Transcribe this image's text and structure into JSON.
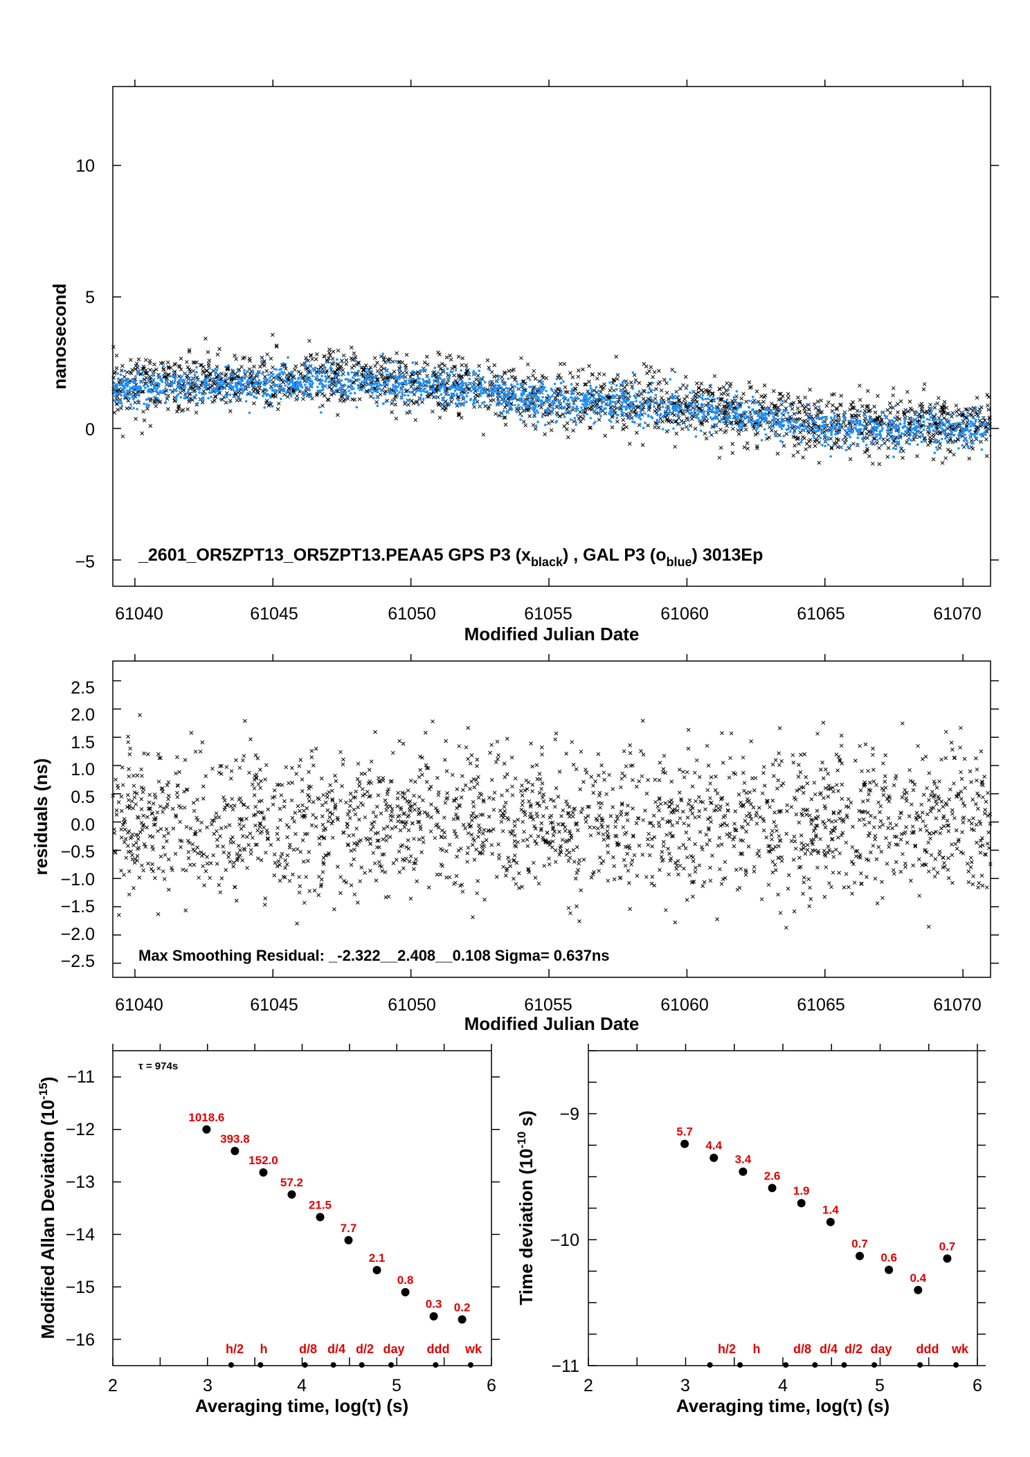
{
  "colors": {
    "gps": "#000000",
    "gal": "#1e90ff",
    "labels": "#e00000"
  },
  "top": {
    "ylabel": "nanosecond",
    "xlabel": "Modified Julian Date",
    "annotation_prefix": "_2601_OR5ZPT13_OR5ZPT13.PEAA5    GPS P3 (x",
    "annotation_sub1": "black",
    "annotation_mid": ") ,  GAL P3 (o",
    "annotation_sub2": "blue",
    "annotation_suffix": ")  3013Ep",
    "yticks": [
      "10",
      "5",
      "0",
      "−5"
    ],
    "xticks": [
      "61040",
      "61045",
      "61050",
      "61055",
      "61060",
      "61065",
      "61070"
    ]
  },
  "middle": {
    "ylabel": "residuals (ns)",
    "xlabel": "Modified Julian Date",
    "annotation": "Max Smoothing Residual: _-2.322__2.408__0.108  Sigma= 0.637ns",
    "yticks": [
      "2.5",
      "2.0",
      "1.5",
      "1.0",
      "0.5",
      "0.0",
      "−0.5",
      "−1.0",
      "−1.5",
      "−2.0",
      "−2.5"
    ],
    "xticks": [
      "61040",
      "61045",
      "61050",
      "61055",
      "61060",
      "61065",
      "61070"
    ]
  },
  "bottom_left": {
    "ylabel_main": "Modified Allan Deviation (10",
    "ylabel_sup": "-15",
    "ylabel_end": ")",
    "xlabel": "Averaging time, log(τ) (s)",
    "tau_note": "τ = 974s",
    "yticks": [
      "−11",
      "−12",
      "−13",
      "−14",
      "−15",
      "−16"
    ],
    "xticks": [
      "2",
      "3",
      "4",
      "5",
      "6"
    ],
    "markers": [
      "h/2",
      "h",
      "d/8",
      "d/4",
      "d/2",
      "day",
      "ddd",
      "wk"
    ]
  },
  "bottom_right": {
    "ylabel_main": "Time deviation (10",
    "ylabel_sup": "-10",
    "ylabel_end": " s)",
    "xlabel": "Averaging time, log(τ) (s)",
    "yticks": [
      "−9",
      "−10",
      "−11"
    ],
    "xticks": [
      "2",
      "3",
      "4",
      "5",
      "6"
    ],
    "markers": [
      "h/2",
      "h",
      "d/8",
      "d/4",
      "d/2",
      "day",
      "ddd",
      "wk"
    ]
  },
  "chart_data": [
    {
      "type": "scatter",
      "panel": "top",
      "xlabel": "Modified Julian Date",
      "ylabel": "nanosecond",
      "xlim": [
        61039.2,
        61071
      ],
      "ylim": [
        -6,
        13
      ],
      "series": [
        {
          "name": "GPS P3 (x black)",
          "marker": "x",
          "trend": [
            [
              61039.2,
              1.6
            ],
            [
              61047,
              1.9
            ],
            [
              61052,
              1.5
            ],
            [
              61055,
              1.1
            ],
            [
              61060,
              0.9
            ],
            [
              61065,
              0.1
            ],
            [
              61071,
              0.1
            ]
          ],
          "spread": 0.55
        },
        {
          "name": "GAL P3 (o blue)",
          "marker": "o",
          "trend": [
            [
              61039.2,
              1.5
            ],
            [
              61047,
              1.8
            ],
            [
              61052,
              1.5
            ],
            [
              61055,
              1.0
            ],
            [
              61060,
              0.8
            ],
            [
              61065,
              0.0
            ],
            [
              61071,
              0.0
            ]
          ],
          "spread": 0.35
        }
      ]
    },
    {
      "type": "scatter",
      "panel": "middle",
      "xlabel": "Modified Julian Date",
      "ylabel": "residuals (ns)",
      "xlim": [
        61039.2,
        61071
      ],
      "ylim": [
        -2.75,
        2.85
      ],
      "series": [
        {
          "name": "residuals",
          "marker": "x",
          "mean": 0.0,
          "sigma": 0.637,
          "min": -2.322,
          "max": 2.408
        }
      ]
    },
    {
      "type": "scatter",
      "panel": "bottom_left",
      "xlabel": "Averaging time, log(τ) (s)",
      "ylabel": "Modified Allan Deviation (10^-15)",
      "xlim": [
        2,
        6
      ],
      "ylim": [
        -16.5,
        -10.5
      ],
      "x": [
        2.99,
        3.29,
        3.59,
        3.89,
        4.19,
        4.49,
        4.79,
        5.09,
        5.39,
        5.69
      ],
      "y": [
        -12.0,
        -12.41,
        -12.82,
        -13.24,
        -13.67,
        -14.11,
        -14.68,
        -15.1,
        -15.56,
        -15.62
      ],
      "labels": [
        "1018.6",
        "393.8",
        "152.0",
        "57.2",
        "21.5",
        "7.7",
        "2.1",
        "0.8",
        "0.3",
        "0.2"
      ],
      "marker_x": [
        3.25,
        3.56,
        4.03,
        4.33,
        4.63,
        4.94,
        5.41,
        5.78
      ]
    },
    {
      "type": "scatter",
      "panel": "bottom_right",
      "xlabel": "Averaging time, log(τ) (s)",
      "ylabel": "Time deviation (10^-10 s)",
      "xlim": [
        2,
        6
      ],
      "ylim": [
        -11,
        -8.5
      ],
      "x": [
        2.99,
        3.29,
        3.59,
        3.89,
        4.19,
        4.49,
        4.79,
        5.09,
        5.39,
        5.69
      ],
      "y": [
        -9.24,
        -9.35,
        -9.46,
        -9.59,
        -9.71,
        -9.86,
        -10.13,
        -10.24,
        -10.4,
        -10.15
      ],
      "labels": [
        "5.7",
        "4.4",
        "3.4",
        "2.6",
        "1.9",
        "1.4",
        "0.7",
        "0.6",
        "0.4",
        "0.7"
      ],
      "marker_x": [
        3.25,
        3.56,
        4.03,
        4.33,
        4.63,
        4.94,
        5.41,
        5.78
      ]
    }
  ]
}
